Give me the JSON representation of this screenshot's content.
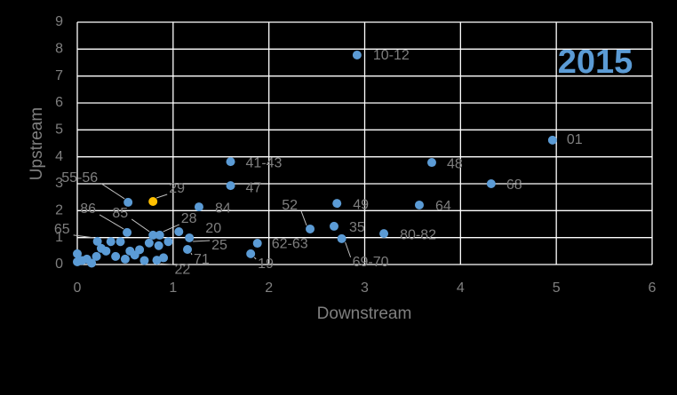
{
  "chart_data": {
    "type": "scatter",
    "title": "2015",
    "title_color": "#5b9bd5",
    "xlabel": "Downstream",
    "ylabel": "Upstream",
    "xlim": [
      0,
      6
    ],
    "ylim": [
      0,
      9
    ],
    "xticks": [
      0,
      1,
      2,
      3,
      4,
      5,
      6
    ],
    "yticks": [
      0,
      1,
      2,
      3,
      4,
      5,
      6,
      7,
      8,
      9
    ],
    "grid": true,
    "series": [
      {
        "color": "#5b9bd5",
        "x": [
          2.92,
          4.96,
          3.7,
          4.32,
          1.6,
          1.6,
          3.57,
          2.71,
          2.43,
          2.68,
          3.2,
          2.76,
          1.88,
          1.81,
          1.27,
          0.53,
          1.06,
          1.17,
          1.15,
          0.83,
          0.52,
          0.79,
          0.86,
          0.21,
          0,
          0,
          0.1,
          0.15,
          0.2,
          0.25,
          0.3,
          0.35,
          0.45,
          0.4,
          0.5,
          0.55,
          0.6,
          0.7,
          0.75,
          0.85,
          0.95,
          0.9,
          0.65,
          0.05
        ],
        "values": [
          7.78,
          4.62,
          3.79,
          3.0,
          3.82,
          2.93,
          2.21,
          2.27,
          1.32,
          1.42,
          1.15,
          0.96,
          0.79,
          0.4,
          2.14,
          2.31,
          1.22,
          0.99,
          0.56,
          0.16,
          1.19,
          1.09,
          1.09,
          0.86,
          0.1,
          0.4,
          0.2,
          0.05,
          0.3,
          0.6,
          0.5,
          0.85,
          0.85,
          0.3,
          0.2,
          0.5,
          0.35,
          0.15,
          0.8,
          0.7,
          0.85,
          0.25,
          0.55,
          0.15
        ],
        "labels": [
          "10-12",
          "01",
          "48",
          "68",
          "41-43",
          "47",
          "64",
          "49",
          "52",
          "35",
          "80-82",
          "69-70",
          "62-63",
          "19",
          "84",
          "55-56",
          "20",
          "25",
          "71",
          "22",
          "86",
          "85",
          "28",
          "65",
          null,
          null,
          null,
          null,
          null,
          null,
          null,
          null,
          null,
          null,
          null,
          null,
          null,
          null,
          null,
          null,
          null,
          null,
          null,
          null
        ]
      },
      {
        "color": "#ffc000",
        "x": [
          0.79
        ],
        "values": [
          2.34
        ],
        "labels": [
          "29"
        ]
      }
    ]
  }
}
